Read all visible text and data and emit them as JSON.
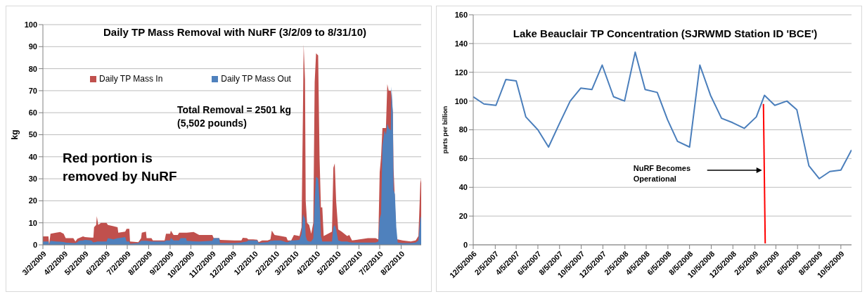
{
  "chart_data": [
    {
      "type": "area",
      "title": "Daily TP Mass Removal with NuRF (3/2/09 to 8/31/10)",
      "ylabel": "kg",
      "legend": "top",
      "grid": "y",
      "annotations": [
        "Total Removal = 2501 kg (5,502 pounds)",
        "Red portion is removed by NuRF"
      ],
      "x": [
        "2009-03-02",
        "2009-03-10",
        "2009-03-11",
        "2009-03-13",
        "2009-03-21",
        "2009-03-27",
        "2009-04-01",
        "2009-04-04",
        "2009-04-15",
        "2009-04-18",
        "2009-04-21",
        "2009-04-23",
        "2009-04-29",
        "2009-05-02",
        "2009-05-11",
        "2009-05-14",
        "2009-05-15",
        "2009-05-18",
        "2009-05-19",
        "2009-05-21",
        "2009-05-25",
        "2009-06-02",
        "2009-06-04",
        "2009-06-12",
        "2009-06-18",
        "2009-06-19",
        "2009-06-29",
        "2009-07-01",
        "2009-07-05",
        "2009-07-06",
        "2009-07-18",
        "2009-07-22",
        "2009-07-23",
        "2009-07-29",
        "2009-07-30",
        "2009-08-06",
        "2009-08-08",
        "2009-08-25",
        "2009-08-27",
        "2009-09-02",
        "2009-09-03",
        "2009-09-07",
        "2009-09-13",
        "2009-09-15",
        "2009-09-17",
        "2009-09-25",
        "2009-09-26",
        "2009-10-06",
        "2009-10-14",
        "2009-11-02",
        "2009-11-04",
        "2009-11-12",
        "2009-11-13",
        "2009-12-04",
        "2009-12-14",
        "2009-12-16",
        "2009-12-22",
        "2009-12-24",
        "2009-12-31",
        "2010-01-06",
        "2010-01-08",
        "2010-01-13",
        "2010-01-21",
        "2010-01-25",
        "2010-01-27",
        "2010-01-31",
        "2010-02-09",
        "2010-02-17",
        "2010-02-19",
        "2010-02-24",
        "2010-02-28",
        "2010-03-08",
        "2010-03-11",
        "2010-03-13",
        "2010-03-14",
        "2010-03-16",
        "2010-03-17",
        "2010-03-19",
        "2010-03-22",
        "2010-03-25",
        "2010-03-28",
        "2010-03-30",
        "2010-04-01",
        "2010-04-04",
        "2010-04-06",
        "2010-04-08",
        "2010-04-10",
        "2010-04-12",
        "2010-04-24",
        "2010-04-26",
        "2010-04-28",
        "2010-04-30",
        "2010-05-03",
        "2010-05-08",
        "2010-05-16",
        "2010-05-19",
        "2010-05-23",
        "2010-06-15",
        "2010-06-26",
        "2010-06-30",
        "2010-07-02",
        "2010-07-04",
        "2010-07-06",
        "2010-07-09",
        "2010-07-11",
        "2010-07-13",
        "2010-07-15",
        "2010-07-18",
        "2010-07-19",
        "2010-07-21",
        "2010-07-22",
        "2010-07-24",
        "2010-07-26",
        "2010-07-28",
        "2010-08-04",
        "2010-08-16",
        "2010-08-23",
        "2010-08-27",
        "2010-08-30",
        "2010-08-31"
      ],
      "series": [
        {
          "name": "Daily TP Mass In",
          "color": "#c0504d",
          "values": [
            3.8,
            3.8,
            0,
            5,
            5.5,
            5.8,
            5,
            3,
            3,
            1.5,
            2.8,
            3,
            3.8,
            3.5,
            3.3,
            3.3,
            8,
            9,
            13,
            9,
            10,
            10,
            9,
            8.5,
            8,
            5.5,
            6,
            7.3,
            7.3,
            1.5,
            1.2,
            3,
            5.5,
            6,
            3,
            3,
            2,
            2,
            5,
            5,
            6.5,
            4.5,
            4.5,
            5.5,
            5.5,
            5.5,
            5.5,
            5.8,
            4.5,
            4.5,
            3,
            3,
            2.2,
            2,
            2,
            3.2,
            3,
            2.5,
            2.5,
            2.3,
            1.2,
            2,
            2,
            2.5,
            6.5,
            4.5,
            4,
            3.5,
            2,
            2,
            4.5,
            4,
            8,
            60,
            91,
            75,
            20,
            10,
            9,
            5,
            10,
            74,
            87,
            86,
            40,
            17,
            17,
            4,
            6,
            35,
            37,
            20,
            7,
            6,
            4,
            4.5,
            2,
            3,
            3,
            2.5,
            33,
            40,
            53,
            53,
            53,
            73,
            70,
            70,
            68,
            60,
            35,
            20,
            2.5,
            2.5,
            2,
            1.5,
            2,
            4,
            30,
            28
          ]
        },
        {
          "name": "Daily TP Mass Out",
          "color": "#4f81bd",
          "values": [
            1.5,
            1.5,
            0,
            1.8,
            1.5,
            1.4,
            1.3,
            1,
            0.8,
            0.8,
            1.2,
            1.8,
            2,
            2.2,
            2,
            1,
            1.2,
            1.3,
            1.5,
            1.5,
            1.5,
            1.5,
            3,
            2.5,
            3,
            3,
            3.5,
            1.5,
            1.5,
            0.5,
            0.8,
            1.8,
            1.8,
            1.8,
            1.8,
            1.5,
            1.5,
            1.5,
            2,
            2,
            3.2,
            2,
            2,
            2,
            3,
            3,
            1.8,
            1.6,
            1.5,
            1.8,
            3,
            3,
            0.8,
            0.8,
            1,
            1.2,
            1.5,
            2,
            2,
            2,
            0.8,
            1,
            1.2,
            1.8,
            1.8,
            2,
            2,
            1.2,
            1.2,
            2,
            2,
            2.2,
            5,
            14,
            13,
            12,
            4,
            2,
            1.5,
            1.5,
            3,
            20,
            31,
            30,
            20,
            4,
            1.5,
            1.5,
            1.5,
            8,
            9,
            7,
            2,
            1.5,
            1.5,
            1.2,
            1,
            1,
            1,
            1.5,
            12,
            14,
            45,
            52,
            50,
            55,
            53,
            52,
            72,
            60,
            25,
            23,
            8,
            1,
            0.8,
            0.8,
            1,
            2,
            13,
            12
          ]
        }
      ],
      "xlim": [
        "2009-03-02",
        "2010-08-31"
      ],
      "xticks": [
        {
          "value": "2009-03-02",
          "label": "3/2/2009"
        },
        {
          "value": "2009-04-02",
          "label": "4/2/2009"
        },
        {
          "value": "2009-05-02",
          "label": "5/2/2009"
        },
        {
          "value": "2009-06-02",
          "label": "6/2/2009"
        },
        {
          "value": "2009-07-02",
          "label": "7/2/2009"
        },
        {
          "value": "2009-08-02",
          "label": "8/2/2009"
        },
        {
          "value": "2009-09-02",
          "label": "9/2/2009"
        },
        {
          "value": "2009-10-02",
          "label": "10/2/2009"
        },
        {
          "value": "2009-11-02",
          "label": "11/2/2009"
        },
        {
          "value": "2009-12-02",
          "label": "12/2/2009"
        },
        {
          "value": "2010-01-02",
          "label": "1/2/2010"
        },
        {
          "value": "2010-02-02",
          "label": "2/2/2010"
        },
        {
          "value": "2010-03-02",
          "label": "3/2/2010"
        },
        {
          "value": "2010-04-02",
          "label": "4/2/2010"
        },
        {
          "value": "2010-05-02",
          "label": "5/2/2010"
        },
        {
          "value": "2010-06-02",
          "label": "6/2/2010"
        },
        {
          "value": "2010-07-02",
          "label": "7/2/2010"
        },
        {
          "value": "2010-08-02",
          "label": "8/2/2010"
        }
      ],
      "ylim": [
        0,
        100
      ],
      "yticks": [
        0,
        10,
        20,
        30,
        40,
        50,
        60,
        70,
        80,
        90,
        100
      ]
    },
    {
      "type": "line",
      "title": "Lake Beauclair TP Concentration (SJRWMD Station ID 'BCE')",
      "ylabel": "parts per billion",
      "grid": "y",
      "annotations": [
        "NuRF Becomes Operational"
      ],
      "x": [
        "2006-12-05",
        "2007-01-04",
        "2007-02-07",
        "2007-03-07",
        "2007-04-05",
        "2007-05-02",
        "2007-06-05",
        "2007-07-05",
        "2007-08-04",
        "2007-09-04",
        "2007-10-04",
        "2007-11-04",
        "2007-12-03",
        "2008-01-04",
        "2008-02-04",
        "2008-03-05",
        "2008-04-02",
        "2008-05-06",
        "2008-06-04",
        "2008-07-02",
        "2008-08-05",
        "2008-09-03",
        "2008-10-03",
        "2008-11-03",
        "2008-12-04",
        "2009-01-06",
        "2009-02-09",
        "2009-03-04",
        "2009-04-02",
        "2009-05-06",
        "2009-06-03",
        "2009-07-07",
        "2009-08-05",
        "2009-09-04",
        "2009-10-05",
        "2009-11-04"
      ],
      "series": [
        {
          "color": "#4a7ebb",
          "values": [
            103,
            98,
            97,
            115,
            114,
            89,
            80,
            68,
            84,
            100,
            109,
            108,
            125,
            103,
            100,
            134,
            108,
            106,
            87,
            72,
            68,
            125,
            104,
            88,
            85,
            81,
            89,
            104,
            97,
            100,
            94,
            55,
            46,
            51,
            52,
            66
          ]
        },
        {
          "type": "line",
          "color": "#ff0000",
          "x": [
            "2009-03-01",
            "2009-03-06"
          ],
          "values": [
            98,
            1
          ]
        }
      ],
      "xlim": [
        "2006-12-05",
        "2009-11-04"
      ],
      "xticks": [
        {
          "value": "2006-12-05",
          "label": "12/5/2006"
        },
        {
          "value": "2007-02-05",
          "label": "2/5/2007"
        },
        {
          "value": "2007-04-05",
          "label": "4/5/2007"
        },
        {
          "value": "2007-06-05",
          "label": "6/5/2007"
        },
        {
          "value": "2007-08-05",
          "label": "8/5/2007"
        },
        {
          "value": "2007-10-05",
          "label": "10/5/2007"
        },
        {
          "value": "2007-12-05",
          "label": "12/5/2007"
        },
        {
          "value": "2008-02-05",
          "label": "2/5/2008"
        },
        {
          "value": "2008-04-05",
          "label": "4/5/2008"
        },
        {
          "value": "2008-06-05",
          "label": "6/5/2008"
        },
        {
          "value": "2008-08-05",
          "label": "8/5/2008"
        },
        {
          "value": "2008-10-05",
          "label": "10/5/2008"
        },
        {
          "value": "2008-12-05",
          "label": "12/5/2008"
        },
        {
          "value": "2009-02-05",
          "label": "2/5/2009"
        },
        {
          "value": "2009-04-05",
          "label": "4/5/2009"
        },
        {
          "value": "2009-06-05",
          "label": "6/5/2009"
        },
        {
          "value": "2009-08-05",
          "label": "8/5/2009"
        },
        {
          "value": "2009-10-05",
          "label": "10/5/2009"
        }
      ],
      "ylim": [
        0,
        160
      ],
      "yticks": [
        0,
        20,
        40,
        60,
        80,
        100,
        120,
        140,
        160
      ]
    }
  ]
}
